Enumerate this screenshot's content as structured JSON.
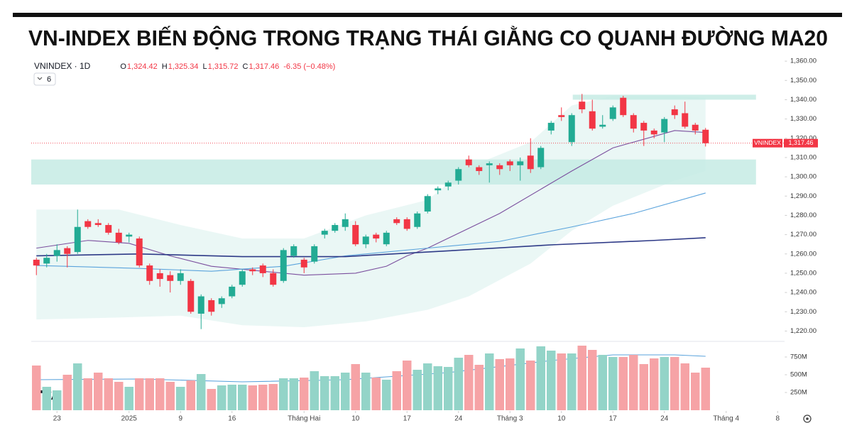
{
  "chart_data": {
    "type": "candlestick",
    "title": "VN-INDEX BIẾN ĐỘNG TRONG TRẠNG THÁI GIẰNG CO QUANH ĐƯỜNG MA20",
    "symbol": "VNINDEX · 1D",
    "ohlc_legend": [
      {
        "key": "O",
        "label": "1,324.42"
      },
      {
        "key": "H",
        "label": "1,325.34"
      },
      {
        "key": "L",
        "label": "1,315.72"
      },
      {
        "key": "C",
        "label": "1,317.46"
      }
    ],
    "change": "-6.35 (−0.48%)",
    "indicators": "6",
    "up_color": "#22ab94",
    "down_color": "#f23645",
    "volume_up_color": "#93d4c8",
    "volume_down_color": "#f6a3a6",
    "open": [
      1257,
      1255,
      1259,
      1263,
      1261,
      1277,
      1276,
      1275,
      1271,
      1269,
      1268,
      1254,
      1250,
      1249,
      1246,
      1246,
      1229,
      1236,
      1234,
      1238,
      1244,
      1252,
      1254,
      1250,
      1246,
      1259,
      1257,
      1256,
      1270,
      1272,
      1274,
      1275,
      1265,
      1270,
      1265,
      1278,
      1278,
      1274,
      1282,
      1293,
      1295,
      1298,
      1309,
      1305,
      1306,
      1306,
      1308,
      1306,
      1311,
      1305,
      1324,
      1332,
      1318,
      1339,
      1334,
      1326,
      1330,
      1341,
      1332,
      1328,
      1324,
      1323,
      1335,
      1333,
      1327,
      1324.42
    ],
    "high": [
      1258,
      1260,
      1265,
      1264,
      1283,
      1278,
      1278,
      1276,
      1273,
      1271,
      1269,
      1255,
      1252,
      1251,
      1252,
      1247,
      1239,
      1237,
      1238,
      1244,
      1252,
      1253,
      1255,
      1252,
      1263,
      1265,
      1258,
      1265,
      1273,
      1276,
      1281,
      1277,
      1270,
      1271,
      1272,
      1279,
      1279,
      1282,
      1291,
      1295,
      1298,
      1305,
      1311,
      1306,
      1308,
      1307,
      1309,
      1310,
      1320,
      1316,
      1329,
      1336,
      1333,
      1343,
      1340,
      1332,
      1337,
      1342,
      1333,
      1329,
      1325,
      1331,
      1337,
      1339,
      1328,
      1325.34
    ],
    "low": [
      1249,
      1253,
      1256,
      1253,
      1260,
      1273,
      1274,
      1270,
      1265,
      1266,
      1253,
      1244,
      1243,
      1240,
      1244,
      1229,
      1221,
      1228,
      1232,
      1237,
      1243,
      1249,
      1248,
      1243,
      1245,
      1258,
      1250,
      1255,
      1268,
      1271,
      1272,
      1264,
      1263,
      1266,
      1264,
      1275,
      1272,
      1273,
      1281,
      1291,
      1293,
      1296,
      1305,
      1301,
      1297,
      1301,
      1303,
      1298,
      1302,
      1304,
      1322,
      1329,
      1316,
      1333,
      1324,
      1325,
      1329,
      1331,
      1323,
      1316,
      1320,
      1318,
      1330,
      1325,
      1322,
      1315.72
    ],
    "close": [
      1254,
      1258,
      1262,
      1260,
      1274,
      1274,
      1275,
      1271,
      1266,
      1270,
      1254,
      1246,
      1247,
      1246,
      1250,
      1230,
      1238,
      1230,
      1237,
      1243,
      1251,
      1251,
      1250,
      1244,
      1262,
      1264,
      1253,
      1264,
      1272,
      1275,
      1278,
      1265,
      1269,
      1268,
      1271,
      1276,
      1273,
      1281,
      1290,
      1294,
      1297,
      1304,
      1306,
      1303,
      1307,
      1304,
      1306,
      1308,
      1304,
      1315,
      1328,
      1331,
      1332,
      1335,
      1325,
      1327,
      1336,
      1332,
      1325,
      1324,
      1322,
      1330,
      1332,
      1326,
      1324,
      1317.46
    ],
    "volume": [
      630,
      330,
      280,
      500,
      660,
      450,
      530,
      450,
      400,
      330,
      450,
      450,
      450,
      400,
      330,
      420,
      510,
      300,
      350,
      360,
      360,
      350,
      360,
      370,
      450,
      450,
      460,
      550,
      480,
      480,
      530,
      650,
      530,
      460,
      430,
      550,
      700,
      570,
      660,
      620,
      610,
      740,
      780,
      640,
      800,
      720,
      730,
      870,
      700,
      900,
      840,
      800,
      800,
      910,
      850,
      780,
      750,
      750,
      780,
      650,
      730,
      750,
      750,
      660,
      530,
      600
    ],
    "lines": [
      {
        "color": "#7b4f9e",
        "x": [
          0,
          5,
          9,
          13,
          17,
          22,
          26,
          31,
          34,
          36,
          38,
          45,
          52,
          56,
          62,
          65
        ],
        "values": [
          1263,
          1267,
          1265.5,
          1259,
          1253.6,
          1251,
          1249,
          1250,
          1253.6,
          1259,
          1263,
          1281,
          1303,
          1315,
          1324,
          1323
        ]
      },
      {
        "color": "#5aa3dc",
        "x": [
          0,
          10,
          17,
          24,
          30,
          38,
          45,
          52,
          58,
          65
        ],
        "values": [
          1254,
          1252.5,
          1251,
          1253.6,
          1259,
          1263,
          1266.5,
          1274,
          1281,
          1291.6
        ]
      },
      {
        "color": "#2e3a87",
        "x": [
          0,
          10,
          20,
          30,
          40,
          50,
          60,
          65
        ],
        "values": [
          1259,
          1260,
          1258.6,
          1258.6,
          1261.6,
          1264.7,
          1267,
          1268.4
        ]
      }
    ],
    "band": {
      "color": "#d8f0ec",
      "x": [
        0,
        8,
        14,
        20,
        26,
        32,
        38,
        42,
        48,
        52,
        56,
        62,
        65
      ],
      "upper": [
        1283,
        1283,
        1275,
        1268,
        1268,
        1280,
        1288,
        1305,
        1318,
        1337,
        1342,
        1342,
        1341
      ],
      "lower": [
        1226,
        1227,
        1228,
        1223,
        1222,
        1225,
        1231,
        1238,
        1255,
        1272,
        1285,
        1298,
        1303
      ]
    },
    "zones": [
      {
        "color": "#c6ebe4",
        "x_range": [
          -0.5,
          69.9
        ],
        "y_range": [
          1296,
          1309
        ]
      },
      {
        "color": "#c6ebe4",
        "x_range": [
          52.1,
          69.9
        ],
        "y_range": [
          1340,
          1342.6
        ]
      }
    ],
    "volume_ma": {
      "color": "#5aa3dc",
      "x": [
        0,
        10,
        20,
        30,
        40,
        50,
        56,
        62,
        65
      ],
      "values": [
        430,
        440,
        400,
        430,
        530,
        700,
        780,
        780,
        760
      ]
    },
    "last_price": {
      "name": "VNINDEX",
      "value": 1317.46,
      "label": "1,317.46"
    },
    "xlim": [
      -0.5,
      72.7
    ],
    "ylim": [
      1215,
      1363
    ],
    "volume_lim": [
      0,
      950
    ],
    "xticks": [
      {
        "value": 2,
        "label": "23"
      },
      {
        "value": 9,
        "label": "2025"
      },
      {
        "value": 14,
        "label": "9"
      },
      {
        "value": 19,
        "label": "16"
      },
      {
        "value": 26,
        "label": "Tháng Hai"
      },
      {
        "value": 31,
        "label": "10"
      },
      {
        "value": 36,
        "label": "17"
      },
      {
        "value": 41,
        "label": "24"
      },
      {
        "value": 46,
        "label": "Tháng 3"
      },
      {
        "value": 51,
        "label": "10"
      },
      {
        "value": 56,
        "label": "17"
      },
      {
        "value": 61,
        "label": "24"
      },
      {
        "value": 67,
        "label": "Tháng 4"
      },
      {
        "value": 72,
        "label": "8"
      }
    ],
    "yticks": [
      {
        "value": 1220,
        "label": "1,220.00"
      },
      {
        "value": 1230,
        "label": "1,230.00"
      },
      {
        "value": 1240,
        "label": "1,240.00"
      },
      {
        "value": 1250,
        "label": "1,250.00"
      },
      {
        "value": 1260,
        "label": "1,260.00"
      },
      {
        "value": 1270,
        "label": "1,270.00"
      },
      {
        "value": 1280,
        "label": "1,280.00"
      },
      {
        "value": 1290,
        "label": "1,290.00"
      },
      {
        "value": 1300,
        "label": "1,300.00"
      },
      {
        "value": 1310,
        "label": "1,310.00"
      },
      {
        "value": 1320,
        "label": "1,320.00"
      },
      {
        "value": 1330,
        "label": "1,330.00"
      },
      {
        "value": 1340,
        "label": "1,340.00"
      },
      {
        "value": 1350,
        "label": "1,350.00"
      },
      {
        "value": 1360,
        "label": "1,360.00"
      }
    ],
    "volume_ticks": [
      {
        "value": 250,
        "label": "250M"
      },
      {
        "value": 500,
        "label": "500M"
      },
      {
        "value": 750,
        "label": "750M"
      }
    ]
  }
}
